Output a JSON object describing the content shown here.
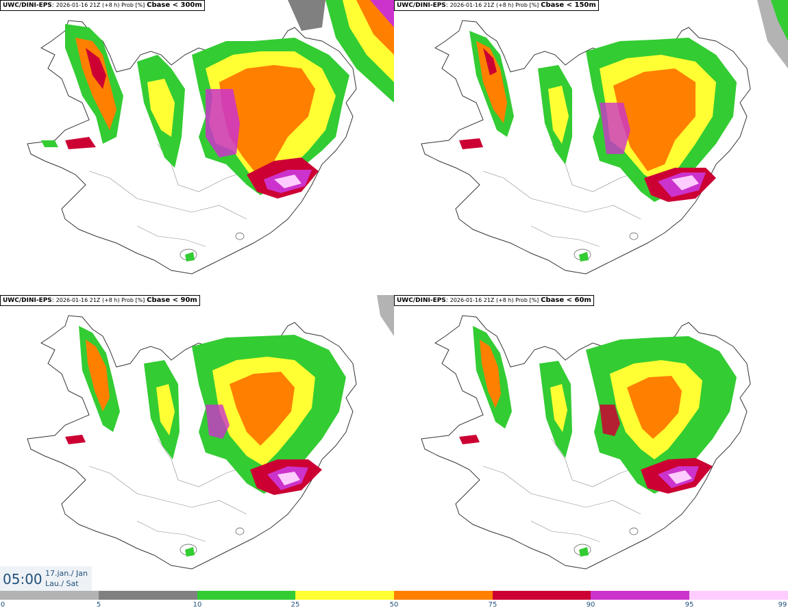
{
  "panels": [
    {
      "source": "UWC/DINI-EPS",
      "meta": "2026-01-16 21Z (+8 h) Prob [%]",
      "threshold": "Cbase < 300m"
    },
    {
      "source": "UWC/DINI-EPS",
      "meta": "2026-01-16 21Z (+8 h) Prob [%]",
      "threshold": "Cbase < 150m"
    },
    {
      "source": "UWC/DINI-EPS",
      "meta": "2026-01-16 21Z (+8 h) Prob [%]",
      "threshold": "Cbase < 90m"
    },
    {
      "source": "UWC/DINI-EPS",
      "meta": "2026-01-16 21Z (+8 h) Prob [%]",
      "threshold": "Cbase < 60m"
    }
  ],
  "valid_time": {
    "time": "05:00",
    "date_line1": "17.jan./ Jan",
    "date_line2": "Lau./ Sat"
  },
  "colorbar": {
    "edge_labels": [
      "0",
      "5",
      "10",
      "25",
      "50",
      "75",
      "90",
      "95",
      "99"
    ],
    "colors": [
      "#ffffff",
      "#b3b3b3",
      "#808080",
      "#33cc33",
      "#ffff33",
      "#ff7f00",
      "#cc0033",
      "#cc33cc",
      "#ffccff"
    ]
  },
  "legend_colors": {
    "light_grey": "#b3b3b3",
    "grey": "#808080",
    "green": "#33cc33",
    "yellow": "#ffff33",
    "orange": "#ff7f00",
    "red": "#cc0033",
    "magenta": "#cc33cc",
    "pink": "#ffccff"
  }
}
